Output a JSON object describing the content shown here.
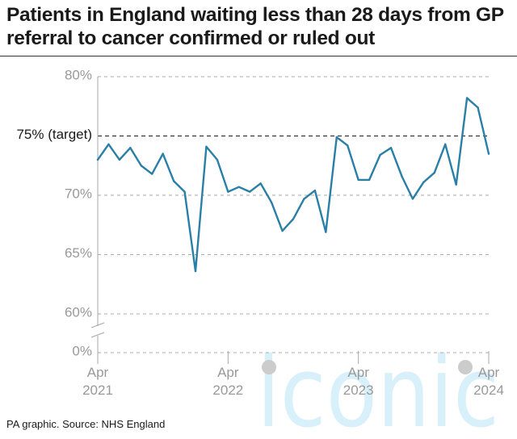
{
  "chart_data": {
    "type": "line",
    "title": "Patients in England waiting less than 28 days from GP referral to cancer confirmed or ruled out",
    "source": "PA graphic. Source: NHS England",
    "watermark": "iconic",
    "line_color": "#2a7fa6",
    "target": {
      "value": 75,
      "label": "75% (target)"
    },
    "y_ticks": [
      {
        "value": 80,
        "label": "80%"
      },
      {
        "value": 75,
        "label": "75% (target)"
      },
      {
        "value": 70,
        "label": "70%"
      },
      {
        "value": 65,
        "label": "65%"
      },
      {
        "value": 60,
        "label": "60%"
      },
      {
        "value": 0,
        "label": "0%"
      }
    ],
    "x_ticks": [
      {
        "month": "2021-04",
        "line1": "Apr",
        "line2": "2021"
      },
      {
        "month": "2022-04",
        "line1": "Apr",
        "line2": "2022"
      },
      {
        "month": "2023-04",
        "line1": "Apr",
        "line2": "2023"
      },
      {
        "month": "2024-04",
        "line1": "Apr",
        "line2": "2024"
      }
    ],
    "axis_break": true,
    "grid": true,
    "series": [
      {
        "x": [
          "2021-04",
          "2021-05",
          "2021-06",
          "2021-07",
          "2021-08",
          "2021-09",
          "2021-10",
          "2021-11",
          "2021-12",
          "2022-01",
          "2022-02",
          "2022-03",
          "2022-04",
          "2022-05",
          "2022-06",
          "2022-07",
          "2022-08",
          "2022-09",
          "2022-10",
          "2022-11",
          "2022-12",
          "2023-01",
          "2023-02",
          "2023-03",
          "2023-04",
          "2023-05",
          "2023-06",
          "2023-07",
          "2023-08",
          "2023-09",
          "2023-10",
          "2023-11",
          "2023-12",
          "2024-01",
          "2024-02",
          "2024-03",
          "2024-04"
        ],
        "values": [
          73.0,
          74.3,
          73.0,
          74.0,
          72.5,
          71.8,
          73.5,
          71.2,
          70.3,
          63.6,
          74.1,
          73.0,
          70.3,
          70.7,
          70.3,
          71.0,
          69.4,
          67.0,
          68.0,
          69.7,
          70.4,
          66.9,
          74.9,
          74.2,
          71.3,
          71.3,
          73.4,
          74.0,
          71.6,
          69.7,
          71.1,
          71.9,
          74.3,
          70.9,
          78.2,
          77.4,
          73.5
        ]
      }
    ]
  }
}
